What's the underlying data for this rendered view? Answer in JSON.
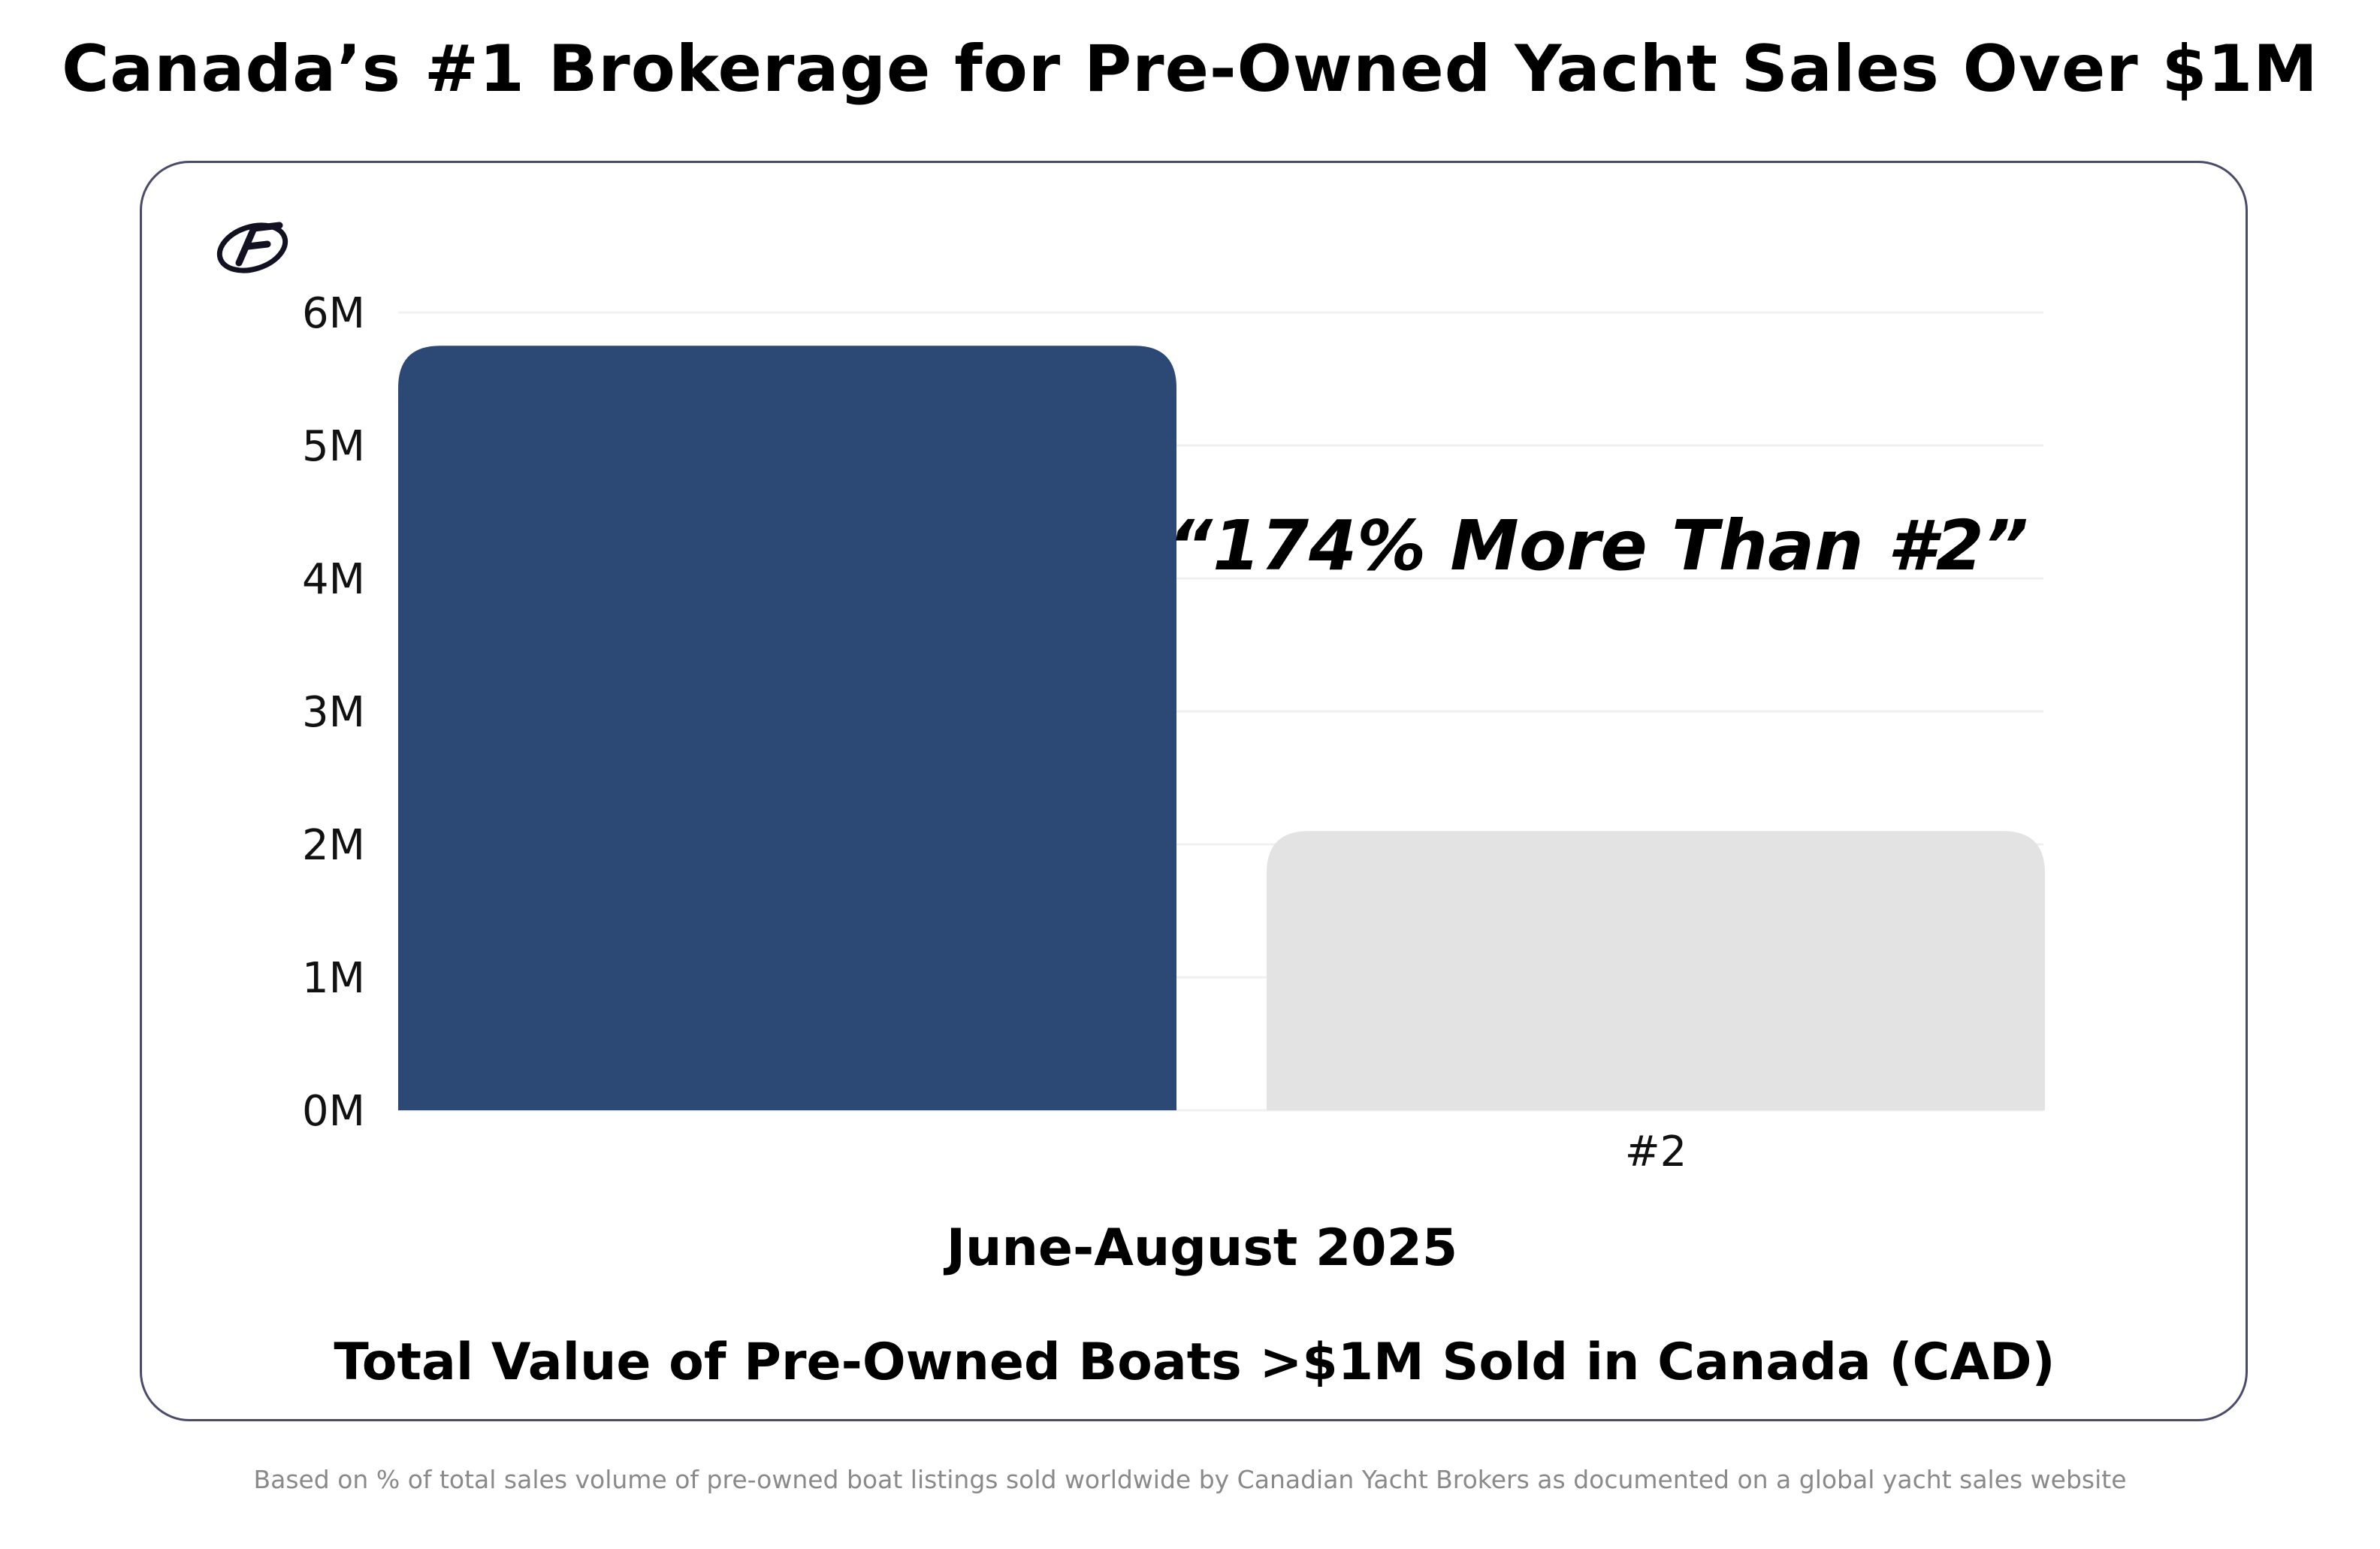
{
  "headline": "Canada’s #1 Brokerage for Pre-Owned Yacht Sales Over $1M",
  "footnote": "Based on % of total sales volume of pre-owned boat listings sold worldwide by Canadian Yacht Brokers as documented on a global yacht sales website",
  "logo_icon": "brokerage-logo-icon",
  "chart_data": {
    "type": "bar",
    "categories": [
      "",
      "#2"
    ],
    "values": [
      5.75,
      2.1
    ],
    "units": "M",
    "ylim": [
      0,
      6
    ],
    "yticks": [
      "0M",
      "1M",
      "2M",
      "3M",
      "4M",
      "5M",
      "6M"
    ],
    "period": "June-August 2025",
    "xlabel": "Total Value of Pre-Owned Boats >$1M Sold in Canada (CAD)",
    "annotation": "“174% More Than #2”",
    "grid": true,
    "bar_colors": [
      "#2c4875",
      "#e3e3e3"
    ],
    "grid_color": "#f0f0f0",
    "card_border_color": "#4a4a6a"
  }
}
